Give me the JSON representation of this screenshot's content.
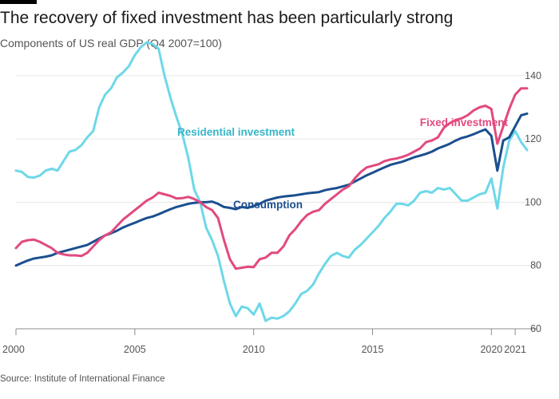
{
  "title": "The recovery of fixed investment has been particularly strong",
  "subtitle": "Components of US real GDP (Q4 2007=100)",
  "source": "Source: Institute of International Finance",
  "chart_data": {
    "type": "line",
    "x_ticks": [
      "2000",
      "2005",
      "2010",
      "2015",
      "2020",
      "2021"
    ],
    "x_tick_positions": [
      2000,
      2005,
      2010,
      2015,
      2020,
      2021
    ],
    "xlim": [
      2000,
      2021.5
    ],
    "ylim": [
      60,
      145
    ],
    "y_ticks": [
      60,
      80,
      100,
      120,
      140
    ],
    "grid": "horizontal",
    "series": [
      {
        "name": "Residential investment",
        "color": "#6dd8e8",
        "points": [
          [
            2000,
            110
          ],
          [
            2000.25,
            109.6
          ],
          [
            2000.5,
            108
          ],
          [
            2000.75,
            107.8
          ],
          [
            2001,
            108.4
          ],
          [
            2001.25,
            110
          ],
          [
            2001.5,
            110.6
          ],
          [
            2001.75,
            110
          ],
          [
            2002,
            113
          ],
          [
            2002.25,
            116
          ],
          [
            2002.5,
            116.5
          ],
          [
            2002.75,
            118
          ],
          [
            2003,
            120.5
          ],
          [
            2003.25,
            122.5
          ],
          [
            2003.5,
            130
          ],
          [
            2003.75,
            134
          ],
          [
            2004,
            136
          ],
          [
            2004.25,
            139.5
          ],
          [
            2004.5,
            141
          ],
          [
            2004.75,
            143
          ],
          [
            2005,
            146.5
          ],
          [
            2005.25,
            149
          ],
          [
            2005.5,
            150.5
          ],
          [
            2005.75,
            150
          ],
          [
            2006,
            148.5
          ],
          [
            2006.25,
            140
          ],
          [
            2006.5,
            133
          ],
          [
            2006.75,
            127
          ],
          [
            2007,
            121.5
          ],
          [
            2007.25,
            114
          ],
          [
            2007.5,
            104
          ],
          [
            2007.75,
            100
          ],
          [
            2008,
            92
          ],
          [
            2008.25,
            88
          ],
          [
            2008.5,
            83
          ],
          [
            2008.75,
            75
          ],
          [
            2009,
            68
          ],
          [
            2009.25,
            64
          ],
          [
            2009.5,
            67
          ],
          [
            2009.75,
            66.5
          ],
          [
            2010,
            64.5
          ],
          [
            2010.25,
            68
          ],
          [
            2010.5,
            62.5
          ],
          [
            2010.75,
            63.5
          ],
          [
            2011,
            63.2
          ],
          [
            2011.25,
            64
          ],
          [
            2011.5,
            65.5
          ],
          [
            2011.75,
            68
          ],
          [
            2012,
            71
          ],
          [
            2012.25,
            72
          ],
          [
            2012.5,
            74
          ],
          [
            2012.75,
            77.5
          ],
          [
            2013,
            80.5
          ],
          [
            2013.25,
            83
          ],
          [
            2013.5,
            84
          ],
          [
            2013.75,
            83
          ],
          [
            2014,
            82.5
          ],
          [
            2014.25,
            85
          ],
          [
            2014.5,
            86.5
          ],
          [
            2014.75,
            88.5
          ],
          [
            2015,
            90.5
          ],
          [
            2015.25,
            92.5
          ],
          [
            2015.5,
            95
          ],
          [
            2015.75,
            97
          ],
          [
            2016,
            99.5
          ],
          [
            2016.25,
            99.5
          ],
          [
            2016.5,
            99
          ],
          [
            2016.75,
            100.5
          ],
          [
            2017,
            103
          ],
          [
            2017.25,
            103.5
          ],
          [
            2017.5,
            103
          ],
          [
            2017.75,
            104.5
          ],
          [
            2018,
            104
          ],
          [
            2018.25,
            104.5
          ],
          [
            2018.5,
            102.5
          ],
          [
            2018.75,
            100.5
          ],
          [
            2019,
            100.5
          ],
          [
            2019.25,
            101.5
          ],
          [
            2019.5,
            102.5
          ],
          [
            2019.75,
            103
          ],
          [
            2020,
            107.5
          ],
          [
            2020.25,
            98
          ],
          [
            2020.5,
            111
          ],
          [
            2020.75,
            119.5
          ],
          [
            2021,
            122.5
          ],
          [
            2021.25,
            119
          ],
          [
            2021.5,
            116.5
          ]
        ]
      },
      {
        "name": "Consumption",
        "color": "#1b4f8f",
        "points": [
          [
            2000,
            80
          ],
          [
            2000.25,
            80.8
          ],
          [
            2000.5,
            81.6
          ],
          [
            2000.75,
            82.2
          ],
          [
            2001,
            82.5
          ],
          [
            2001.25,
            82.8
          ],
          [
            2001.5,
            83.2
          ],
          [
            2001.75,
            84
          ],
          [
            2002,
            84.5
          ],
          [
            2002.25,
            85
          ],
          [
            2002.5,
            85.5
          ],
          [
            2002.75,
            86
          ],
          [
            2003,
            86.5
          ],
          [
            2003.25,
            87.5
          ],
          [
            2003.5,
            88.5
          ],
          [
            2003.75,
            89.5
          ],
          [
            2004,
            90.2
          ],
          [
            2004.25,
            91
          ],
          [
            2004.5,
            92
          ],
          [
            2004.75,
            92.8
          ],
          [
            2005,
            93.5
          ],
          [
            2005.25,
            94.3
          ],
          [
            2005.5,
            95
          ],
          [
            2005.75,
            95.5
          ],
          [
            2006,
            96.2
          ],
          [
            2006.25,
            97
          ],
          [
            2006.5,
            97.8
          ],
          [
            2006.75,
            98.5
          ],
          [
            2007,
            99
          ],
          [
            2007.25,
            99.5
          ],
          [
            2007.5,
            99.8
          ],
          [
            2007.75,
            100
          ],
          [
            2008,
            100
          ],
          [
            2008.25,
            100.2
          ],
          [
            2008.5,
            99.5
          ],
          [
            2008.75,
            98.5
          ],
          [
            2009,
            98.2
          ],
          [
            2009.25,
            97.8
          ],
          [
            2009.5,
            98.5
          ],
          [
            2009.75,
            98.2
          ],
          [
            2010,
            98.8
          ],
          [
            2010.25,
            99.5
          ],
          [
            2010.5,
            100.5
          ],
          [
            2010.75,
            101
          ],
          [
            2011,
            101.5
          ],
          [
            2011.25,
            101.8
          ],
          [
            2011.5,
            102
          ],
          [
            2011.75,
            102.2
          ],
          [
            2012,
            102.5
          ],
          [
            2012.25,
            102.8
          ],
          [
            2012.5,
            103
          ],
          [
            2012.75,
            103.2
          ],
          [
            2013,
            103.8
          ],
          [
            2013.25,
            104.2
          ],
          [
            2013.5,
            104.5
          ],
          [
            2013.75,
            105
          ],
          [
            2014,
            105.5
          ],
          [
            2014.25,
            106.5
          ],
          [
            2014.5,
            107.5
          ],
          [
            2014.75,
            108.5
          ],
          [
            2015,
            109.3
          ],
          [
            2015.25,
            110.2
          ],
          [
            2015.5,
            111
          ],
          [
            2015.75,
            111.8
          ],
          [
            2016,
            112.3
          ],
          [
            2016.25,
            112.8
          ],
          [
            2016.5,
            113.5
          ],
          [
            2016.75,
            114.2
          ],
          [
            2017,
            114.7
          ],
          [
            2017.25,
            115.3
          ],
          [
            2017.5,
            116
          ],
          [
            2017.75,
            117
          ],
          [
            2018,
            117.7
          ],
          [
            2018.25,
            118.5
          ],
          [
            2018.5,
            119.5
          ],
          [
            2018.75,
            120.3
          ],
          [
            2019,
            120.8
          ],
          [
            2019.25,
            121.5
          ],
          [
            2019.5,
            122.3
          ],
          [
            2019.75,
            123
          ],
          [
            2020,
            121
          ],
          [
            2020.25,
            110
          ],
          [
            2020.5,
            119.5
          ],
          [
            2020.75,
            120.5
          ],
          [
            2021,
            124
          ],
          [
            2021.25,
            127.5
          ],
          [
            2021.5,
            128
          ]
        ]
      },
      {
        "name": "Fixed investment",
        "color": "#e2497f",
        "points": [
          [
            2000,
            85.5
          ],
          [
            2000.25,
            87.5
          ],
          [
            2000.5,
            88
          ],
          [
            2000.75,
            88.2
          ],
          [
            2001,
            87.5
          ],
          [
            2001.25,
            86.5
          ],
          [
            2001.5,
            85.5
          ],
          [
            2001.75,
            84
          ],
          [
            2002,
            83.5
          ],
          [
            2002.25,
            83.2
          ],
          [
            2002.5,
            83.2
          ],
          [
            2002.75,
            83
          ],
          [
            2003,
            84
          ],
          [
            2003.25,
            86
          ],
          [
            2003.5,
            88
          ],
          [
            2003.75,
            89.5
          ],
          [
            2004,
            90.5
          ],
          [
            2004.25,
            92.5
          ],
          [
            2004.5,
            94.5
          ],
          [
            2004.75,
            96
          ],
          [
            2005,
            97.5
          ],
          [
            2005.25,
            99
          ],
          [
            2005.5,
            100.5
          ],
          [
            2005.75,
            101.5
          ],
          [
            2006,
            103
          ],
          [
            2006.25,
            102.5
          ],
          [
            2006.5,
            102
          ],
          [
            2006.75,
            101.2
          ],
          [
            2007,
            101.3
          ],
          [
            2007.25,
            101.7
          ],
          [
            2007.5,
            101
          ],
          [
            2007.75,
            100
          ],
          [
            2008,
            98.5
          ],
          [
            2008.25,
            97.5
          ],
          [
            2008.5,
            95
          ],
          [
            2008.75,
            88
          ],
          [
            2009,
            82
          ],
          [
            2009.25,
            79
          ],
          [
            2009.5,
            79.3
          ],
          [
            2009.75,
            79.6
          ],
          [
            2010,
            79.5
          ],
          [
            2010.25,
            82
          ],
          [
            2010.5,
            82.5
          ],
          [
            2010.75,
            84
          ],
          [
            2011,
            84
          ],
          [
            2011.25,
            86
          ],
          [
            2011.5,
            89.5
          ],
          [
            2011.75,
            91.5
          ],
          [
            2012,
            94
          ],
          [
            2012.25,
            96
          ],
          [
            2012.5,
            97
          ],
          [
            2012.75,
            97.5
          ],
          [
            2013,
            99.5
          ],
          [
            2013.25,
            101
          ],
          [
            2013.5,
            102.5
          ],
          [
            2013.75,
            104
          ],
          [
            2014,
            105
          ],
          [
            2014.25,
            107.5
          ],
          [
            2014.5,
            109.5
          ],
          [
            2014.75,
            111
          ],
          [
            2015,
            111.5
          ],
          [
            2015.25,
            112
          ],
          [
            2015.5,
            113
          ],
          [
            2015.75,
            113.5
          ],
          [
            2016,
            113.8
          ],
          [
            2016.25,
            114.3
          ],
          [
            2016.5,
            115
          ],
          [
            2016.75,
            116
          ],
          [
            2017,
            117
          ],
          [
            2017.25,
            119
          ],
          [
            2017.5,
            119.5
          ],
          [
            2017.75,
            120.5
          ],
          [
            2018,
            123.5
          ],
          [
            2018.25,
            125
          ],
          [
            2018.5,
            126
          ],
          [
            2018.75,
            126.5
          ],
          [
            2019,
            127.5
          ],
          [
            2019.25,
            129
          ],
          [
            2019.5,
            130
          ],
          [
            2019.75,
            130.5
          ],
          [
            2020,
            129.5
          ],
          [
            2020.25,
            118.5
          ],
          [
            2020.5,
            124
          ],
          [
            2020.75,
            129.5
          ],
          [
            2021,
            134
          ],
          [
            2021.25,
            136
          ],
          [
            2021.5,
            136
          ]
        ]
      }
    ],
    "annotations": [
      {
        "text": "Residential investment",
        "series": 0
      },
      {
        "text": "Consumption",
        "series": 1
      },
      {
        "text": "Fixed investment",
        "series": 2
      }
    ]
  }
}
